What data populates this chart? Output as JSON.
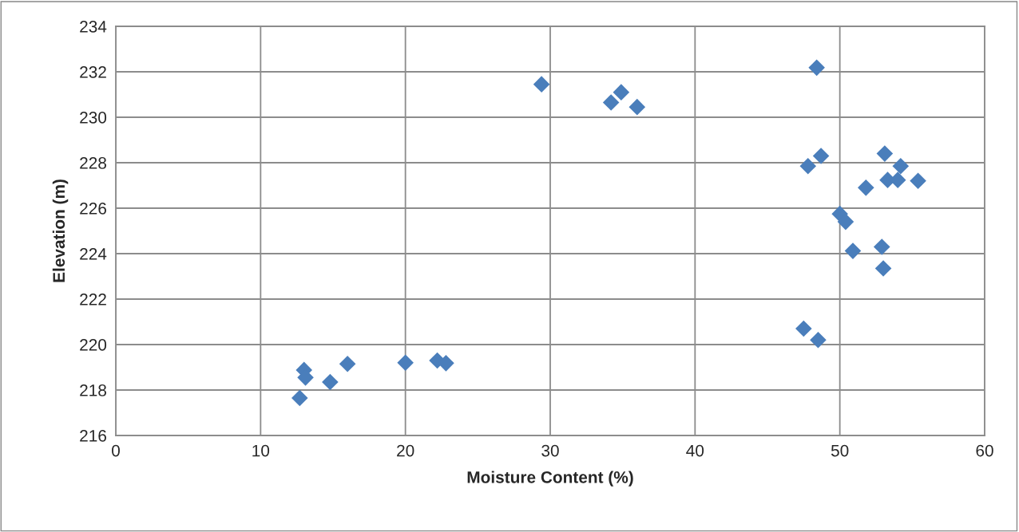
{
  "chart_data": {
    "type": "scatter",
    "xlabel": "Moisture Content (%)",
    "ylabel": "Elevation (m)",
    "series": [
      {
        "color": "#4a7ebb",
        "x": [
          12.7,
          13.0,
          13.1,
          14.8,
          16.0,
          20.0,
          22.2,
          22.8,
          29.4,
          34.9,
          34.2,
          36.0,
          48.4,
          48.7,
          47.8,
          53.1,
          54.2,
          53.3,
          54.0,
          55.4,
          51.8,
          50.0,
          50.4,
          50.9,
          52.9,
          53.0,
          47.5,
          48.5
        ],
        "values": [
          217.65,
          218.88,
          218.55,
          218.35,
          219.15,
          219.2,
          219.3,
          219.18,
          231.45,
          231.1,
          230.65,
          230.45,
          232.18,
          228.3,
          227.85,
          228.4,
          227.85,
          227.24,
          227.24,
          227.2,
          226.9,
          225.75,
          225.4,
          224.12,
          224.3,
          223.35,
          220.7,
          220.2
        ]
      }
    ],
    "xlim": [
      0,
      60
    ],
    "xticks": [
      0,
      10,
      20,
      30,
      40,
      50,
      60
    ],
    "ylim": [
      216,
      234
    ],
    "yticks": [
      216,
      218,
      220,
      222,
      224,
      226,
      228,
      230,
      232,
      234
    ],
    "grid": true,
    "marker": "diamond"
  }
}
